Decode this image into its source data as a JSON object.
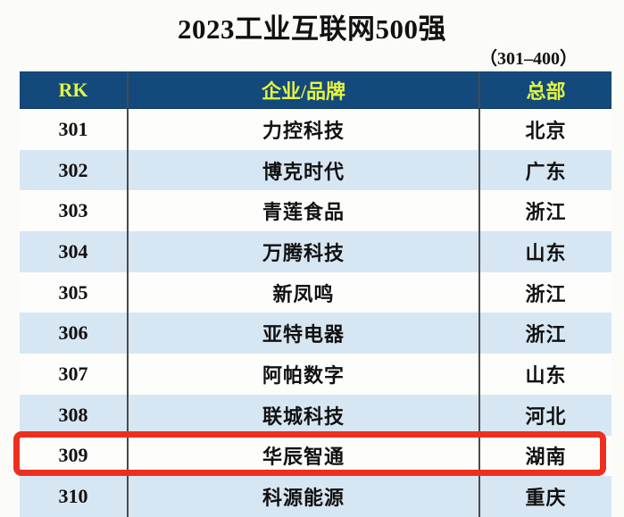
{
  "title": "2023工业互联网500强",
  "subtitle": "（301–400）",
  "table": {
    "headers": {
      "rk": "RK",
      "company": "企业/品牌",
      "hq": "总部"
    },
    "rows": [
      {
        "rk": "301",
        "company": "力控科技",
        "hq": "北京"
      },
      {
        "rk": "302",
        "company": "博克时代",
        "hq": "广东"
      },
      {
        "rk": "303",
        "company": "青莲食品",
        "hq": "浙江"
      },
      {
        "rk": "304",
        "company": "万腾科技",
        "hq": "山东"
      },
      {
        "rk": "305",
        "company": "新凤鸣",
        "hq": "浙江"
      },
      {
        "rk": "306",
        "company": "亚特电器",
        "hq": "浙江"
      },
      {
        "rk": "307",
        "company": "阿帕数字",
        "hq": "山东"
      },
      {
        "rk": "308",
        "company": "联城科技",
        "hq": "河北"
      },
      {
        "rk": "309",
        "company": "华辰智通",
        "hq": "湖南"
      },
      {
        "rk": "310",
        "company": "科源能源",
        "hq": "重庆"
      }
    ],
    "highlighted_row_rk": "309"
  },
  "colors": {
    "header_bg": "#14497b",
    "header_text": "#e3f442",
    "row_bg": "#fdfdfc",
    "row_alt_bg": "#d7e6f3",
    "column_separator": "#4a4a4a",
    "highlight_border": "#ee2f1f"
  },
  "chart_data": {
    "type": "table",
    "title": "2023工业互联网500强",
    "subtitle": "（301–400）",
    "columns": [
      "RK",
      "企业/品牌",
      "总部"
    ],
    "rows": [
      [
        "301",
        "力控科技",
        "北京"
      ],
      [
        "302",
        "博克时代",
        "广东"
      ],
      [
        "303",
        "青莲食品",
        "浙江"
      ],
      [
        "304",
        "万腾科技",
        "山东"
      ],
      [
        "305",
        "新凤鸣",
        "浙江"
      ],
      [
        "306",
        "亚特电器",
        "浙江"
      ],
      [
        "307",
        "阿帕数字",
        "山东"
      ],
      [
        "308",
        "联城科技",
        "河北"
      ],
      [
        "309",
        "华辰智通",
        "湖南"
      ],
      [
        "310",
        "科源能源",
        "重庆"
      ]
    ],
    "highlighted_row": [
      "309",
      "华辰智通",
      "湖南"
    ],
    "layout_hints": {
      "header_style": "navy background, yellow text",
      "zebra_striping": true,
      "highlight": "red rounded rectangle around row 309"
    }
  }
}
